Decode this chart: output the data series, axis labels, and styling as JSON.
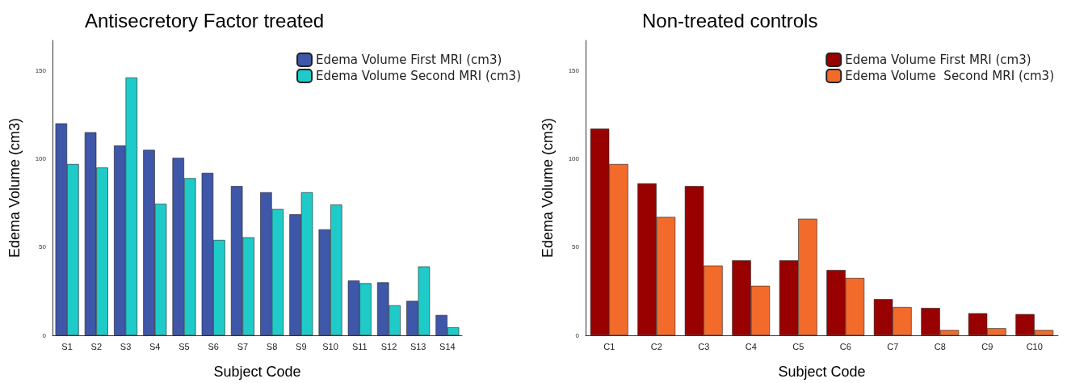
{
  "chart_data": [
    {
      "type": "bar",
      "title": "Antisecretory Factor treated",
      "xlabel": "Subject Code",
      "ylabel": "Edema Volume (cm3)",
      "categories": [
        "S1",
        "S2",
        "S3",
        "S4",
        "S5",
        "S6",
        "S7",
        "S8",
        "S9",
        "S10",
        "S11",
        "S12",
        "S13",
        "S14"
      ],
      "series": [
        {
          "name": "Edema Volume First MRI (cm3)",
          "color": "#3f57a8",
          "values": [
            120,
            115,
            107.5,
            105,
            100.5,
            92,
            84.5,
            81,
            68.5,
            60,
            31,
            30,
            19.5,
            11.5
          ]
        },
        {
          "name": "Edema Volume Second MRI (cm3)",
          "color": "#1ecbc8",
          "values": [
            97,
            95,
            146,
            74.5,
            89,
            54,
            55.5,
            71.5,
            81,
            74,
            29.5,
            17,
            39,
            4.5
          ]
        }
      ],
      "ylim": [
        0,
        167
      ],
      "yticks": [
        0,
        50,
        100,
        150
      ],
      "grid": false,
      "legend": "top right"
    },
    {
      "type": "bar",
      "title": "Non-treated controls",
      "xlabel": "Subject Code",
      "ylabel": "Edema Volume (cm3)",
      "categories": [
        "C1",
        "C2",
        "C3",
        "C4",
        "C5",
        "C6",
        "C7",
        "C8",
        "C9",
        "C10"
      ],
      "series": [
        {
          "name": "Edema Volume First MRI (cm3)",
          "color": "#990000",
          "values": [
            117,
            86,
            84.5,
            42.5,
            42.5,
            37,
            20.5,
            15.5,
            12.5,
            12
          ]
        },
        {
          "name": "Edema Volume  Second MRI (cm3)",
          "color": "#f26b2b",
          "values": [
            97,
            67,
            39.5,
            28,
            66,
            32.5,
            16,
            3,
            4,
            3
          ]
        }
      ],
      "ylim": [
        0,
        167
      ],
      "yticks": [
        0,
        50,
        100,
        150
      ],
      "grid": false,
      "legend": "top right"
    }
  ]
}
